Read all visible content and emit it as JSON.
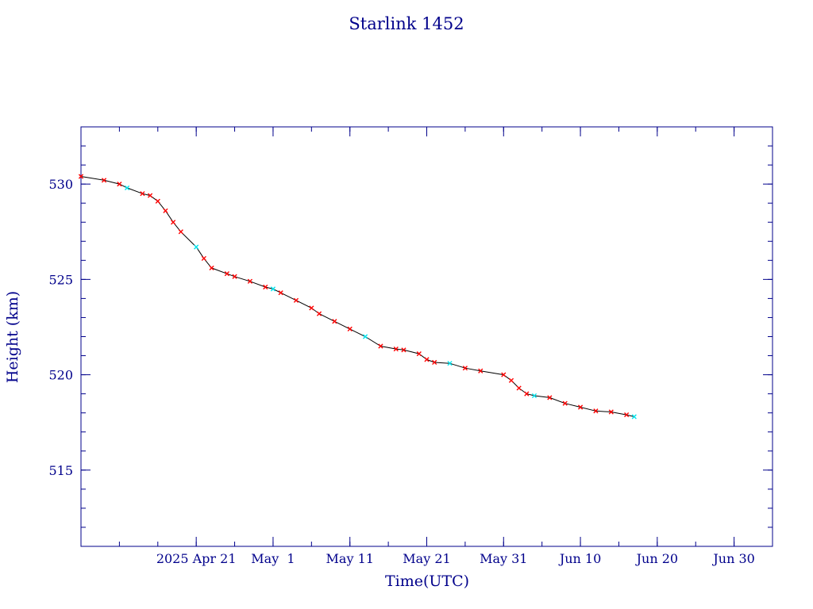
{
  "chart_data": {
    "type": "scatter",
    "title": "Starlink 1452",
    "xlabel": "Time(UTC)",
    "ylabel": "Height (km)",
    "xlim": [
      "2025-04-06",
      "2025-07-05"
    ],
    "ylim": [
      511,
      533
    ],
    "yticks": [
      515,
      520,
      525,
      530
    ],
    "xticks": [
      {
        "date": "2025-04-21",
        "label": "2025 Apr 21"
      },
      {
        "date": "2025-05-01",
        "label": "May  1"
      },
      {
        "date": "2025-05-11",
        "label": "May 11"
      },
      {
        "date": "2025-05-21",
        "label": "May 21"
      },
      {
        "date": "2025-05-31",
        "label": "May 31"
      },
      {
        "date": "2025-06-10",
        "label": "Jun 10"
      },
      {
        "date": "2025-06-20",
        "label": "Jun 20"
      },
      {
        "date": "2025-06-30",
        "label": "Jun 30"
      }
    ],
    "grid": false,
    "colors": {
      "axes": "#00008b",
      "text": "#00008b",
      "line": "#000000",
      "markers": "#ff0000",
      "highlight": "#00e5ee"
    },
    "series": [
      {
        "marker": "x",
        "x": [
          "2025-04-06",
          "2025-04-09",
          "2025-04-11",
          "2025-04-12",
          "2025-04-14",
          "2025-04-15",
          "2025-04-16",
          "2025-04-17",
          "2025-04-18",
          "2025-04-19",
          "2025-04-21",
          "2025-04-22",
          "2025-04-23",
          "2025-04-25",
          "2025-04-26",
          "2025-04-28",
          "2025-04-30",
          "2025-05-01",
          "2025-05-02",
          "2025-05-04",
          "2025-05-06",
          "2025-05-07",
          "2025-05-09",
          "2025-05-11",
          "2025-05-13",
          "2025-05-15",
          "2025-05-17",
          "2025-05-18",
          "2025-05-20",
          "2025-05-21",
          "2025-05-22",
          "2025-05-24",
          "2025-05-26",
          "2025-05-28",
          "2025-05-31",
          "2025-06-01",
          "2025-06-02",
          "2025-06-03",
          "2025-06-04",
          "2025-06-06",
          "2025-06-08",
          "2025-06-10",
          "2025-06-12",
          "2025-06-14",
          "2025-06-16",
          "2025-06-17"
        ],
        "y": [
          530.4,
          530.2,
          530.0,
          529.8,
          529.5,
          529.4,
          529.1,
          528.6,
          528.0,
          527.5,
          526.7,
          526.1,
          525.6,
          525.3,
          525.15,
          524.9,
          524.6,
          524.5,
          524.3,
          523.9,
          523.5,
          523.2,
          522.8,
          522.4,
          522.0,
          521.5,
          521.35,
          521.3,
          521.1,
          520.8,
          520.65,
          520.6,
          520.35,
          520.2,
          520.0,
          519.7,
          519.3,
          519.0,
          518.9,
          518.8,
          518.5,
          518.3,
          518.1,
          518.05,
          517.9,
          517.8
        ]
      }
    ]
  }
}
